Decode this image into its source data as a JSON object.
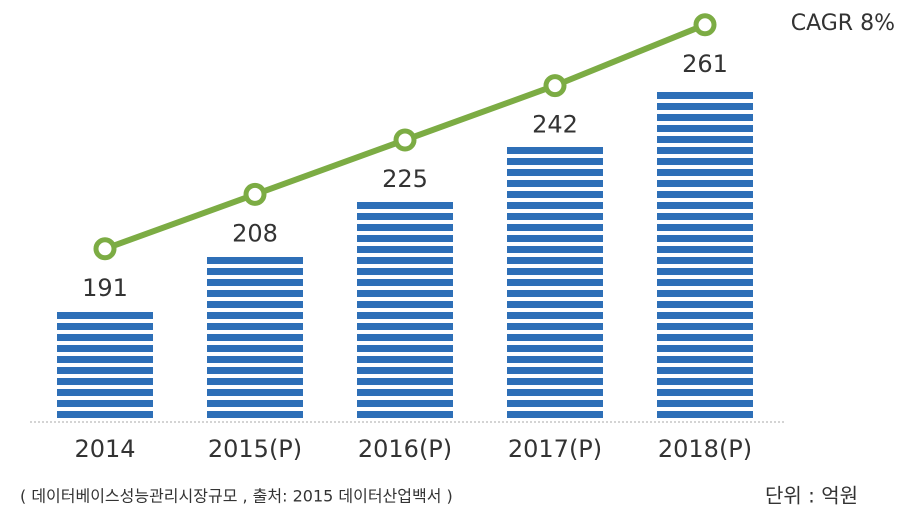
{
  "chart_data": {
    "type": "bar",
    "categories": [
      "2014",
      "2015(P)",
      "2016(P)",
      "2017(P)",
      "2018(P)"
    ],
    "values": [
      191,
      208,
      225,
      242,
      261
    ],
    "color": "#2e6fb7",
    "line_color": "#7cac44",
    "ylim": [
      155,
      275
    ],
    "annotation": "CAGR 8%",
    "note": "( 데이터베이스성능관리시장규모 , 출처: 2015 데이터산업백서 )",
    "unit": "단위 : 억원"
  }
}
